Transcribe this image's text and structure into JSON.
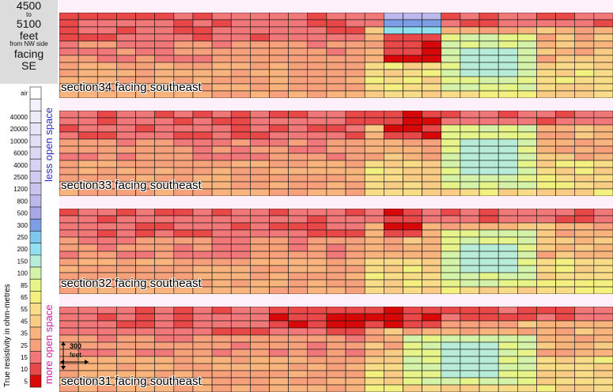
{
  "header": {
    "line1": "4500",
    "line2": "to",
    "line3": "5100",
    "line4": "feet",
    "line5": "from NW side",
    "line6": "facing",
    "line7": "SE"
  },
  "legend": {
    "axis_label": "True resistivity in ohm-metres",
    "upper_note": "less open space",
    "lower_note": "more open space",
    "upper_note_color": "#2b2bd0",
    "lower_note_color": "#d01ea0",
    "bins": [
      {
        "label": "air",
        "color": "#ffffff"
      },
      {
        "label": "",
        "color": "#f4f0fb"
      },
      {
        "label": "40000",
        "color": "#eeeafa"
      },
      {
        "label": "20000",
        "color": "#e8e4f8"
      },
      {
        "label": "10000",
        "color": "#e2def6"
      },
      {
        "label": "6000",
        "color": "#dcd8f4"
      },
      {
        "label": "4000",
        "color": "#d6d2f2"
      },
      {
        "label": "2500",
        "color": "#d0ccf0"
      },
      {
        "label": "1200",
        "color": "#c8c4ee"
      },
      {
        "label": "800",
        "color": "#bcb8ea"
      },
      {
        "label": "500",
        "color": "#a8a8e8"
      },
      {
        "label": "300",
        "color": "#7c9ee6"
      },
      {
        "label": "250",
        "color": "#7ec8ec"
      },
      {
        "label": "200",
        "color": "#90e0f0"
      },
      {
        "label": "150",
        "color": "#b6ecd8"
      },
      {
        "label": "100",
        "color": "#d4f2a8"
      },
      {
        "label": "85",
        "color": "#e6f48a"
      },
      {
        "label": "65",
        "color": "#f4f080"
      },
      {
        "label": "55",
        "color": "#f8dc88"
      },
      {
        "label": "45",
        "color": "#f8cc84"
      },
      {
        "label": "35",
        "color": "#f8b47c"
      },
      {
        "label": "25",
        "color": "#f6a07c"
      },
      {
        "label": "15",
        "color": "#f07878"
      },
      {
        "label": "10",
        "color": "#e84848"
      },
      {
        "label": "5",
        "color": "#d80808"
      }
    ]
  },
  "scale_label_value": "300",
  "scale_label_unit": "feet",
  "sections": [
    {
      "title": "section34  facing southeast"
    },
    {
      "title": "section33  facing southeast"
    },
    {
      "title": "section32  facing southeast"
    },
    {
      "title": "section31  facing southeast"
    }
  ],
  "chart_data": {
    "type": "heatmap",
    "description_units": "true resistivity in ohm-metres, cells coloured by legend bin",
    "columns": 29,
    "rows": 12,
    "sections": [
      {
        "name": "section34  facing southeast",
        "top_profile": [
          0,
          0,
          0,
          0,
          0,
          0,
          0,
          0,
          0,
          0,
          0,
          0,
          0,
          1,
          0,
          0,
          1,
          1,
          1,
          1,
          1,
          1,
          1,
          1,
          1,
          1,
          1,
          1,
          1
        ],
        "high_resistivity_zone": {
          "columns": [
            17,
            19
          ],
          "rows": [
            0,
            2
          ],
          "max_bin": "300"
        },
        "low_resistivity_zone": {
          "columns": [
            17,
            19
          ],
          "rows": [
            3,
            6
          ],
          "min_bin": "10"
        },
        "moderate_zone": {
          "columns": [
            20,
            24
          ],
          "rows": [
            3,
            10
          ],
          "bin": "100"
        }
      },
      {
        "name": "section33  facing southeast",
        "top_profile": [
          0,
          0,
          0,
          0,
          0,
          0,
          0,
          0,
          0,
          0,
          0,
          0,
          0,
          0,
          0,
          0,
          0,
          0,
          0,
          0,
          0,
          0,
          0,
          0,
          0,
          0,
          0,
          0,
          0
        ],
        "low_resistivity_zone": {
          "columns": [
            17,
            19
          ],
          "rows": [
            0,
            3
          ],
          "min_bin": "10"
        },
        "moderate_zone": {
          "columns": [
            20,
            24
          ],
          "rows": [
            2,
            10
          ],
          "bin": "100"
        }
      },
      {
        "name": "section32  facing southeast",
        "top_profile": [
          0,
          0,
          0,
          0,
          0,
          0,
          0,
          0,
          0,
          0,
          0,
          0,
          0,
          0,
          0,
          0,
          0,
          0,
          0,
          0,
          0,
          0,
          0,
          0,
          0,
          0,
          0,
          0,
          0
        ],
        "low_resistivity_zone": {
          "columns": [
            17,
            18
          ],
          "rows": [
            0,
            3
          ],
          "min_bin": "10"
        },
        "moderate_zone": {
          "columns": [
            20,
            24
          ],
          "rows": [
            3,
            10
          ],
          "bin": "100"
        }
      },
      {
        "name": "section31  facing southeast",
        "top_profile": [
          0,
          0,
          0,
          0,
          0,
          0,
          0,
          0,
          0,
          0,
          0,
          0,
          0,
          0,
          0,
          0,
          0,
          0,
          0,
          0,
          0,
          0,
          0,
          0,
          0,
          0,
          0,
          0,
          0
        ],
        "low_resistivity_zone": {
          "columns": [
            11,
            19
          ],
          "rows": [
            0,
            2
          ],
          "min_bin": "10"
        },
        "moderate_zone": {
          "columns": [
            18,
            24
          ],
          "rows": [
            4,
            10
          ],
          "bin": "150"
        }
      }
    ]
  }
}
